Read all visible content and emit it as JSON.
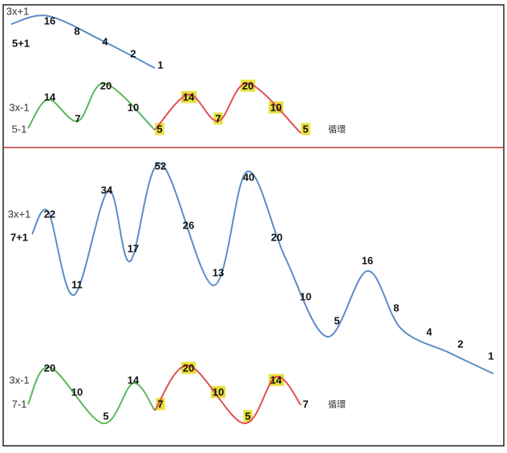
{
  "panels": [
    {
      "top": {
        "rule": "3x+1",
        "start": "5+1",
        "labels": [
          "16",
          "8",
          "4",
          "2",
          "1"
        ]
      },
      "bottom": {
        "rule": "3x-1",
        "start": "5-1",
        "labels": [
          "14",
          "7",
          "20",
          "10",
          "5",
          "14",
          "7",
          "20",
          "10",
          "5"
        ],
        "note": "循環"
      }
    },
    {
      "top": {
        "rule": "3x+1",
        "start": "7+1",
        "labels": [
          "22",
          "11",
          "34",
          "17",
          "52",
          "26",
          "13",
          "40",
          "20",
          "10",
          "5",
          "16",
          "8",
          "4",
          "2",
          "1"
        ]
      },
      "bottom": {
        "rule": "3x-1",
        "start": "7-1",
        "labels": [
          "20",
          "10",
          "5",
          "14",
          "7",
          "20",
          "10",
          "5",
          "14",
          "7"
        ],
        "note": "循環"
      }
    }
  ]
}
